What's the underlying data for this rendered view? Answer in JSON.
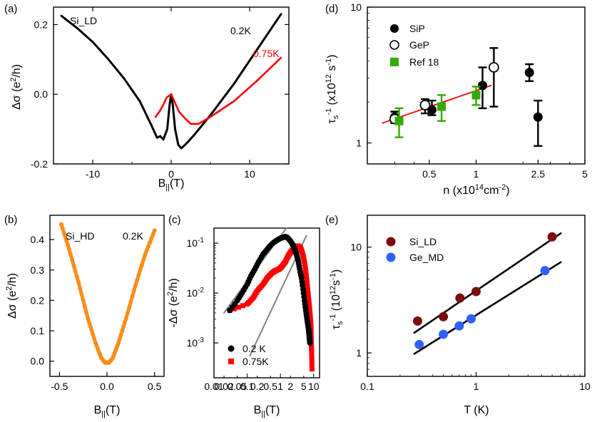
{
  "chart_data": [
    {
      "panel": "(a)",
      "type": "line",
      "xlabel": "B||(T)",
      "ylabel": "Δσ (e²/h)",
      "xlim": [
        -15,
        15
      ],
      "ylim": [
        -0.2,
        0.25
      ],
      "xticks": [
        -10,
        0,
        10
      ],
      "yticks": [
        -0.2,
        0.0,
        0.2
      ],
      "xtick_labels": [
        "-10",
        "0",
        "10"
      ],
      "ytick_labels": [
        "-0.2",
        "0.0",
        "0.2"
      ],
      "annotations": [
        "Si_LD"
      ],
      "series": [
        {
          "name": "0.2K",
          "color": "#000000",
          "x": [
            -14,
            -12,
            -10,
            -8,
            -6,
            -4,
            -2.5,
            -1.8,
            -1.4,
            -1.0,
            -0.5,
            -0.2,
            0,
            0.2,
            0.5,
            0.9,
            1.3,
            2,
            3,
            5,
            8,
            11,
            14
          ],
          "y": [
            0.225,
            0.19,
            0.15,
            0.1,
            0.045,
            -0.02,
            -0.09,
            -0.125,
            -0.12,
            -0.13,
            -0.1,
            -0.03,
            0.0,
            -0.03,
            -0.1,
            -0.145,
            -0.155,
            -0.14,
            -0.115,
            -0.06,
            0.03,
            0.13,
            0.23
          ]
        },
        {
          "name": "0.75K",
          "color": "#ff0000",
          "x": [
            -2,
            -1.5,
            -1,
            -0.6,
            -0.3,
            0,
            0.4,
            1,
            1.8,
            2.5,
            3.5,
            5,
            8,
            11,
            14
          ],
          "y": [
            -0.065,
            -0.05,
            -0.03,
            -0.01,
            -0.005,
            0.0,
            -0.02,
            -0.05,
            -0.07,
            -0.085,
            -0.085,
            -0.065,
            -0.02,
            0.04,
            0.105
          ]
        }
      ]
    },
    {
      "panel": "(b)",
      "type": "scatter",
      "xlabel": "B||(T)",
      "ylabel": "Δσ (e²/h)",
      "xlim": [
        -0.6,
        0.6
      ],
      "ylim": [
        -0.05,
        0.48
      ],
      "xticks": [
        -0.5,
        0.0,
        0.5
      ],
      "yticks": [
        0.0,
        0.1,
        0.2,
        0.3,
        0.4
      ],
      "xtick_labels": [
        "-0.5",
        "0.0",
        "0.5"
      ],
      "ytick_labels": [
        "0.0",
        "0.1",
        "0.2",
        "0.3",
        "0.4"
      ],
      "annotations": [
        "Si_HD",
        "0.2K"
      ],
      "series": [
        {
          "name": "0.2K",
          "color": "#ff8c1a",
          "x": [
            -0.48,
            -0.4,
            -0.3,
            -0.2,
            -0.12,
            -0.06,
            -0.02,
            0.0,
            0.02,
            0.06,
            0.12,
            0.2,
            0.3,
            0.4,
            0.5
          ],
          "y": [
            0.45,
            0.37,
            0.26,
            0.14,
            0.06,
            0.01,
            -0.005,
            -0.005,
            -0.005,
            0.01,
            0.06,
            0.14,
            0.25,
            0.35,
            0.43
          ]
        }
      ]
    },
    {
      "panel": "(c)",
      "type": "scatter",
      "xlabel": "B||(T)",
      "ylabel": "-Δσ (e²/h)",
      "xscale": "log",
      "yscale": "log",
      "xlim": [
        0.01,
        15
      ],
      "ylim": [
        0.0002,
        0.2
      ],
      "xticks": [
        0.01,
        0.1,
        1,
        10
      ],
      "xminor_ticks": [
        0.02,
        0.05,
        0.2,
        0.5,
        2,
        5
      ],
      "xtick_labels": [
        "0.01",
        "0.02",
        "0.05",
        "0.1",
        "0.2",
        "0.5",
        "1",
        "2",
        "5",
        "10"
      ],
      "yticks": [
        0.001,
        0.01,
        0.1
      ],
      "ytick_labels": [
        "10⁻³",
        "10⁻²",
        "10⁻¹"
      ],
      "series": [
        {
          "name": "0.2  K",
          "color": "#000000",
          "marker": "circle",
          "x": [
            0.03,
            0.05,
            0.07,
            0.1,
            0.13,
            0.17,
            0.22,
            0.3,
            0.4,
            0.5,
            0.65,
            0.8,
            1.0,
            1.2,
            1.4,
            1.6,
            1.8,
            2.0,
            2.2,
            2.4,
            2.6,
            2.8,
            3.0,
            3.4,
            3.8,
            4.3,
            4.8,
            5.3,
            5.8,
            6.3,
            6.8,
            7.1,
            7.3,
            7.5,
            7.7
          ],
          "y": [
            0.0045,
            0.007,
            0.01,
            0.015,
            0.022,
            0.03,
            0.042,
            0.06,
            0.075,
            0.09,
            0.105,
            0.115,
            0.125,
            0.13,
            0.135,
            0.13,
            0.12,
            0.11,
            0.1,
            0.09,
            0.08,
            0.07,
            0.06,
            0.045,
            0.03,
            0.02,
            0.012,
            0.007,
            0.0045,
            0.003,
            0.0022,
            0.0018,
            0.0015,
            0.0012,
            0.001
          ]
        },
        {
          "name": "0.75K",
          "color": "#ff0000",
          "marker": "square",
          "x": [
            0.03,
            0.1,
            0.15,
            0.2,
            0.3,
            0.4,
            0.55,
            0.7,
            0.9,
            1.1,
            1.4,
            1.7,
            2.0,
            2.4,
            2.8,
            3.2,
            3.6,
            4.0,
            4.5,
            5.0,
            5.5,
            6.0,
            6.5,
            7.0,
            7.5,
            8.0,
            8.3,
            8.5,
            8.7,
            8.9
          ],
          "y": [
            0.0045,
            0.006,
            0.008,
            0.011,
            0.015,
            0.02,
            0.025,
            0.028,
            0.03,
            0.034,
            0.042,
            0.055,
            0.065,
            0.075,
            0.085,
            0.088,
            0.086,
            0.08,
            0.065,
            0.05,
            0.035,
            0.022,
            0.013,
            0.008,
            0.005,
            0.003,
            0.002,
            0.001,
            0.0006,
            0.0003
          ]
        }
      ],
      "reference_lines": [
        {
          "color": "#808080",
          "x": [
            0.02,
            1.5
          ],
          "y": [
            0.004,
            0.2
          ]
        },
        {
          "color": "#808080",
          "x": [
            0.12,
            6.0
          ],
          "y": [
            0.00055,
            0.14
          ]
        }
      ]
    },
    {
      "panel": "(d)",
      "type": "scatter",
      "xlabel": "n (x10¹⁴cm⁻²)",
      "ylabel": "τs⁻¹ (x10¹² s⁻¹)",
      "xscale": "log",
      "yscale": "log",
      "xlim": [
        0.2,
        5.0
      ],
      "ylim": [
        0.7,
        10
      ],
      "xticks": [
        0.5,
        1,
        2.5,
        5
      ],
      "xtick_labels": [
        "0.5",
        "1",
        "2.5",
        "5"
      ],
      "yticks": [
        1,
        10
      ],
      "ytick_labels": [
        "1",
        "10"
      ],
      "series": [
        {
          "name": "SiP",
          "color": "#000000",
          "marker": "filled-circle",
          "x": [
            0.3,
            0.52,
            1.1,
            2.2,
            2.5
          ],
          "y": [
            1.55,
            1.75,
            2.65,
            3.3,
            1.55
          ],
          "err_low": [
            1.4,
            1.6,
            1.8,
            2.85,
            0.95
          ],
          "err_high": [
            1.7,
            2.05,
            3.6,
            3.8,
            2.05
          ]
        },
        {
          "name": "GeP",
          "color": "#000000",
          "marker": "open-circle",
          "x": [
            0.3,
            0.47,
            1.3
          ],
          "y": [
            1.5,
            1.9,
            3.6
          ],
          "err_low": [
            1.4,
            1.65,
            1.85
          ],
          "err_high": [
            1.7,
            2.1,
            5.0
          ]
        },
        {
          "name": "Ref 18",
          "color": "#33aa00",
          "marker": "square",
          "x": [
            0.32,
            0.6,
            1.0
          ],
          "y": [
            1.45,
            1.85,
            2.25
          ],
          "err_low": [
            1.1,
            1.45,
            1.9
          ],
          "err_high": [
            1.8,
            2.25,
            2.6
          ]
        }
      ],
      "fit_line": {
        "color": "#ff0000",
        "x": [
          0.25,
          1.25
        ],
        "y": [
          1.4,
          2.65
        ]
      }
    },
    {
      "panel": "(e)",
      "type": "scatter",
      "xlabel": "T (K)",
      "ylabel": "τs⁻¹ (10¹²s⁻¹)",
      "xscale": "log",
      "yscale": "log",
      "xlim": [
        0.1,
        10
      ],
      "ylim": [
        0.6,
        20
      ],
      "xticks": [
        0.1,
        1,
        10
      ],
      "xtick_labels": [
        "0.1",
        "1",
        "10"
      ],
      "yticks": [
        1,
        10
      ],
      "ytick_labels": [
        "1",
        "10"
      ],
      "series": [
        {
          "name": "Si_LD",
          "color": "#7a0f0f",
          "x": [
            0.29,
            0.5,
            0.71,
            1.0,
            5.0
          ],
          "y": [
            2.0,
            2.2,
            3.3,
            3.8,
            12.5
          ]
        },
        {
          "name": "Ge_MD",
          "color": "#3060ff",
          "x": [
            0.3,
            0.5,
            0.7,
            0.9,
            4.3
          ],
          "y": [
            1.2,
            1.5,
            1.8,
            2.1,
            6.0
          ]
        }
      ],
      "fit_lines": [
        {
          "color": "#000000",
          "x": [
            0.27,
            6.0
          ],
          "y": [
            1.55,
            13.5
          ]
        },
        {
          "color": "#000000",
          "x": [
            0.27,
            6.0
          ],
          "y": [
            0.98,
            7.2
          ]
        }
      ]
    }
  ]
}
